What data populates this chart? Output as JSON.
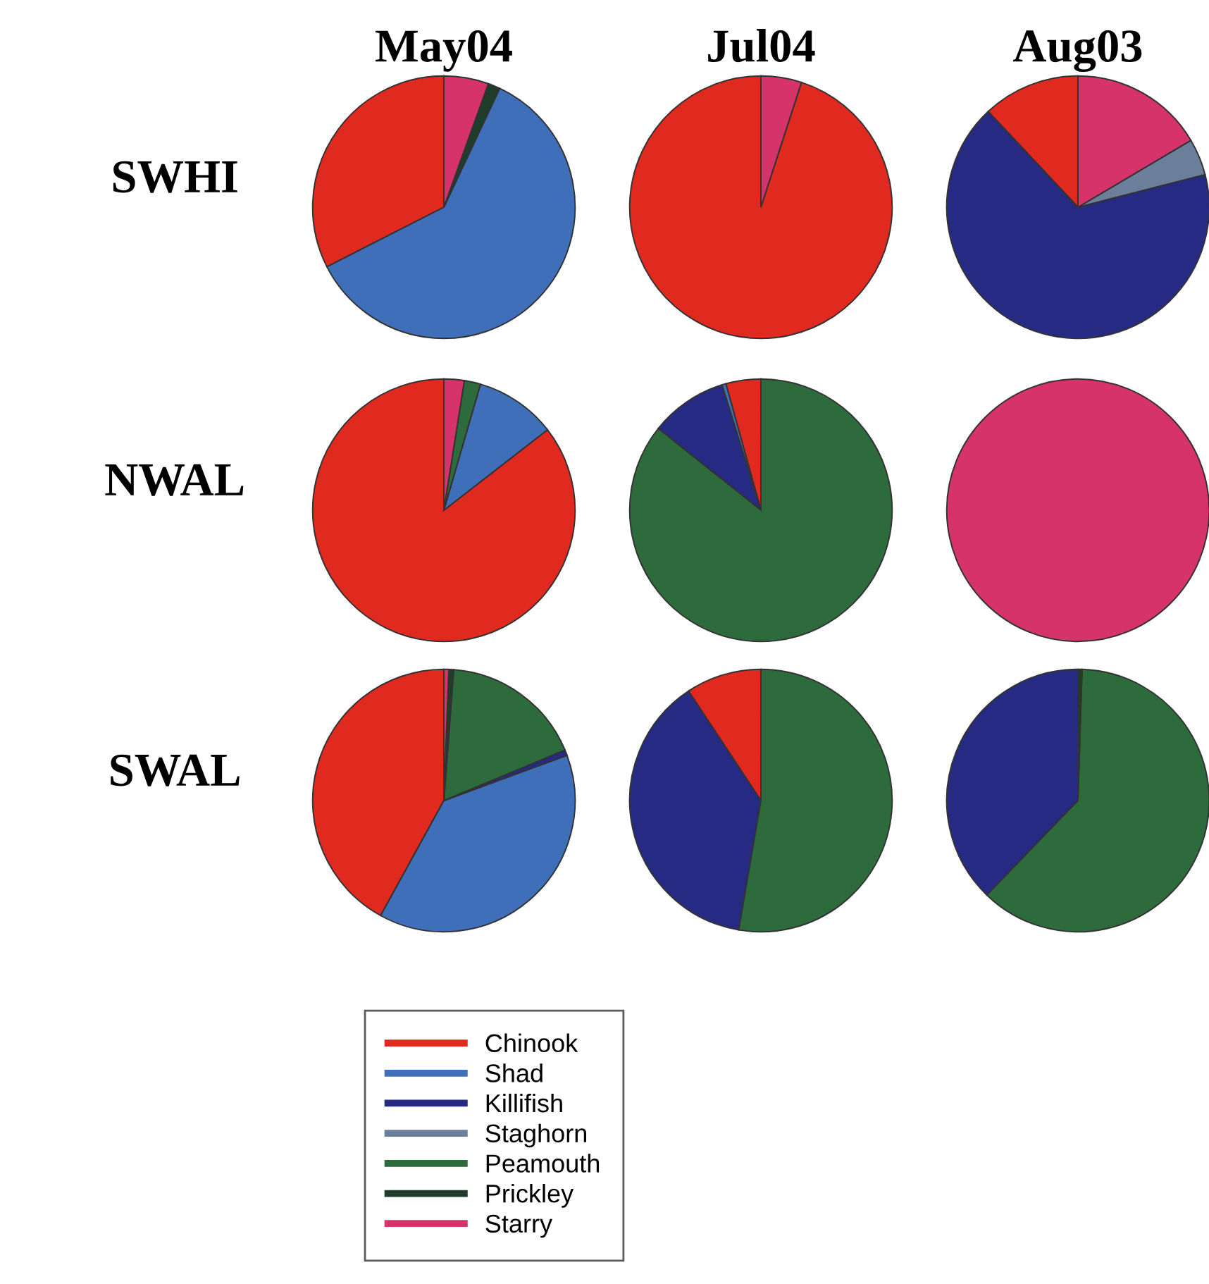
{
  "chart_data": [
    {
      "type": "pie",
      "title": "May04",
      "ylabel": "SWHI",
      "legend": "bottom",
      "categories": [
        "Chinook",
        "Shad",
        "Killifish",
        "Staghorn",
        "Peamouth",
        "Prickley",
        "Starry"
      ],
      "values": [
        32.5,
        60.5,
        0,
        0,
        0,
        1.5,
        5.5
      ],
      "colors": [
        "#e0291f",
        "#3f6fb8",
        "#262a82",
        "#6b7f9a",
        "#2e6b3c",
        "#1f3d2a",
        "#d6336b"
      ]
    },
    {
      "type": "pie",
      "title": "Jul04",
      "categories": [
        null,
        null,
        null,
        null,
        null,
        null,
        null
      ],
      "values": [
        95,
        0,
        0,
        0,
        0,
        0,
        5
      ],
      "colors": [
        "#e0291f",
        "#3f6fb8",
        "#262a82",
        "#6b7f9a",
        "#2e6b3c",
        "#1f3d2a",
        "#d6336b"
      ]
    },
    {
      "type": "pie",
      "title": "Aug03",
      "categories": [
        null,
        null,
        null,
        null,
        null,
        null,
        null
      ],
      "values": [
        12,
        0,
        67,
        4.5,
        0,
        0,
        16.5
      ],
      "colors": [
        "#e0291f",
        "#3f6fb8",
        "#262a82",
        "#6b7f9a",
        "#2e6b3c",
        "#1f3d2a",
        "#d6336b"
      ]
    },
    {
      "type": "pie",
      "ylabel": "NWAL",
      "categories": [
        null,
        null,
        null,
        null,
        null,
        null,
        null
      ],
      "values": [
        85.5,
        10,
        0,
        0,
        2,
        0,
        2.5
      ],
      "colors": [
        "#e0291f",
        "#3f6fb8",
        "#262a82",
        "#6b7f9a",
        "#2e6b3c",
        "#1f3d2a",
        "#d6336b"
      ]
    },
    {
      "type": "pie",
      "categories": [
        null,
        null,
        null,
        null,
        null,
        null,
        null
      ],
      "values": [
        4.3,
        0.5,
        9.5,
        0,
        85.7,
        0,
        0
      ],
      "colors": [
        "#e0291f",
        "#3f6fb8",
        "#262a82",
        "#6b7f9a",
        "#2e6b3c",
        "#1f3d2a",
        "#d6336b"
      ]
    },
    {
      "type": "pie",
      "categories": [
        null,
        null,
        null,
        null,
        null,
        null,
        null
      ],
      "values": [
        0,
        0,
        0,
        0,
        0,
        0,
        100
      ],
      "colors": [
        "#e0291f",
        "#3f6fb8",
        "#262a82",
        "#6b7f9a",
        "#2e6b3c",
        "#1f3d2a",
        "#d6336b"
      ]
    },
    {
      "type": "pie",
      "ylabel": "SWAL",
      "categories": [
        null,
        null,
        null,
        null,
        null,
        null,
        null
      ],
      "values": [
        42,
        38.6,
        0.7,
        0,
        17.5,
        0.6,
        0.6
      ],
      "colors": [
        "#e0291f",
        "#3f6fb8",
        "#262a82",
        "#6b7f9a",
        "#2e6b3c",
        "#1f3d2a",
        "#d6336b"
      ]
    },
    {
      "type": "pie",
      "categories": [
        null,
        null,
        null,
        null,
        null,
        null,
        null
      ],
      "values": [
        9.3,
        0,
        38,
        0,
        52.7,
        0,
        0
      ],
      "colors": [
        "#e0291f",
        "#3f6fb8",
        "#262a82",
        "#6b7f9a",
        "#2e6b3c",
        "#1f3d2a",
        "#d6336b"
      ]
    },
    {
      "type": "pie",
      "categories": [
        null,
        null,
        null,
        null,
        null,
        null,
        null
      ],
      "values": [
        0,
        0,
        37.8,
        0,
        61.7,
        0.5,
        0
      ],
      "colors": [
        "#e0291f",
        "#3f6fb8",
        "#262a82",
        "#6b7f9a",
        "#2e6b3c",
        "#1f3d2a",
        "#d6336b"
      ]
    }
  ]
}
